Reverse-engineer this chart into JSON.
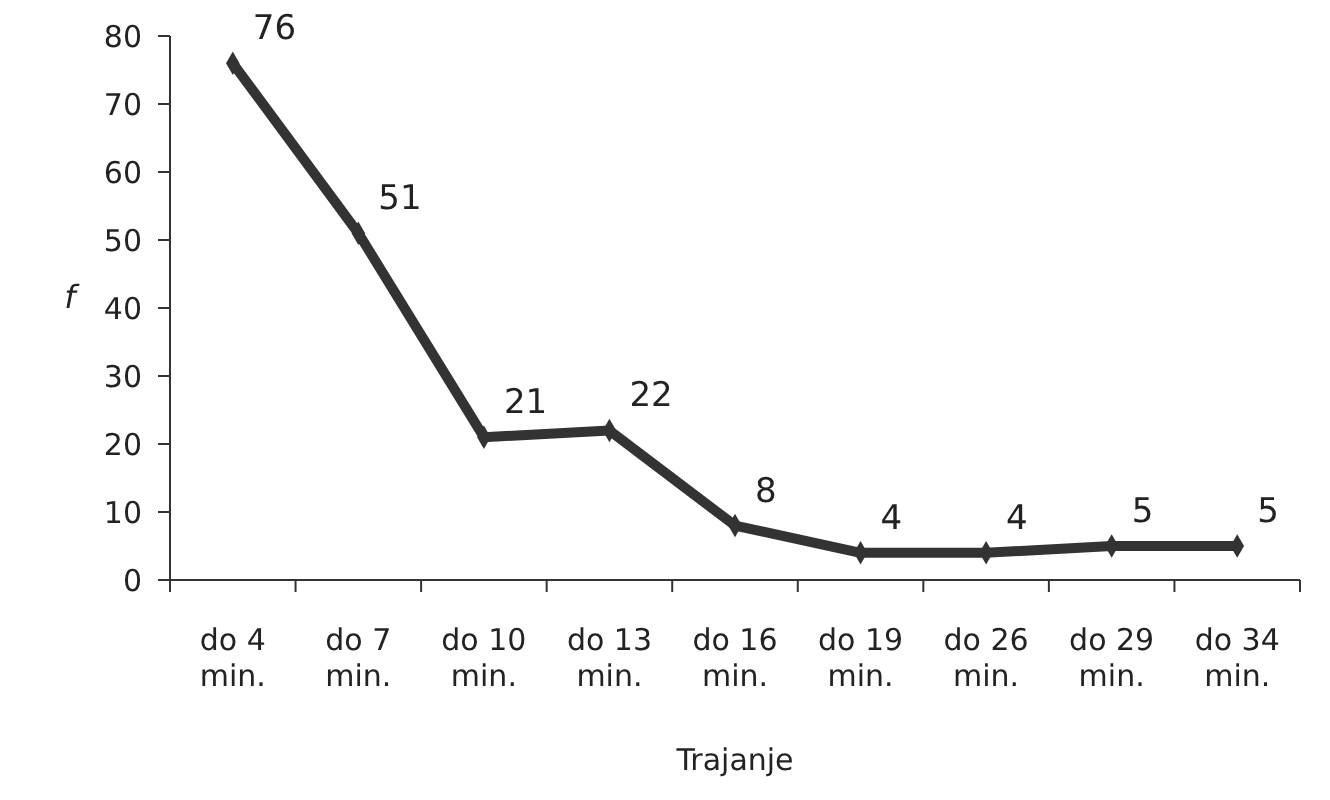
{
  "chart_data": {
    "type": "line",
    "xlabel": "Trajanje",
    "ylabel": "f",
    "categories": [
      "do 4 min.",
      "do 7 min.",
      "do 10 min.",
      "do 13 min.",
      "do 16 min.",
      "do 19 min.",
      "do 26 min.",
      "do 29 min.",
      "do 34 min."
    ],
    "series": [
      {
        "color": "#333333",
        "values": [
          76,
          51,
          21,
          22,
          8,
          4,
          4,
          5,
          5
        ]
      }
    ],
    "ylim": [
      0,
      80
    ],
    "yticks": [
      0,
      10,
      20,
      30,
      40,
      50,
      60,
      70,
      80
    ],
    "grid": false,
    "marker": "diamond",
    "line_style": "solid",
    "data_labels": true
  }
}
